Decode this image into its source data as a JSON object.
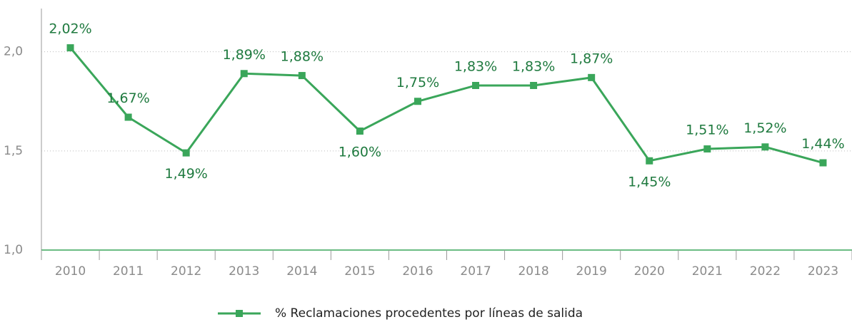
{
  "chart_data": {
    "type": "line",
    "categories": [
      "2010",
      "2011",
      "2012",
      "2013",
      "2014",
      "2015",
      "2016",
      "2017",
      "2018",
      "2019",
      "2020",
      "2021",
      "2022",
      "2023"
    ],
    "series": [
      {
        "name": "% Reclamaciones procedentes por líneas de salida",
        "color": "#3aa65a",
        "values": [
          2.02,
          1.67,
          1.49,
          1.89,
          1.88,
          1.6,
          1.75,
          1.83,
          1.83,
          1.87,
          1.45,
          1.51,
          1.52,
          1.44
        ],
        "value_labels": [
          "2,02%",
          "1,67%",
          "1,49%",
          "1,89%",
          "1,88%",
          "1,60%",
          "1,75%",
          "1,83%",
          "1,83%",
          "1,87%",
          "1,45%",
          "1,51%",
          "1,52%",
          "1,44%"
        ]
      }
    ],
    "ylim": [
      1.0,
      2.2
    ],
    "yticks": [
      {
        "value": 1.0,
        "label": "1,0"
      },
      {
        "value": 1.5,
        "label": "1,5"
      },
      {
        "value": 2.0,
        "label": "2,0"
      }
    ],
    "grid": true,
    "legend": "bottom"
  }
}
